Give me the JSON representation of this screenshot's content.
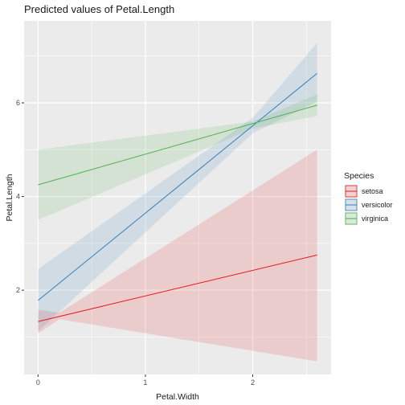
{
  "chart_data": {
    "type": "line",
    "title": "Predicted values of Petal.Length",
    "xlabel": "Petal.Width",
    "ylabel": "Petal.Length",
    "xlim": [
      -0.13,
      2.73
    ],
    "ylim": [
      0.2,
      7.75
    ],
    "x_ticks": [
      0,
      1,
      2
    ],
    "y_ticks": [
      2,
      4,
      6
    ],
    "grid": true,
    "legend_title": "Species",
    "legend_position": "right",
    "series": [
      {
        "name": "setosa",
        "color": "#e41a1c",
        "x": [
          0,
          2.6
        ],
        "values": [
          1.33,
          2.75
        ],
        "ci_x": [
          0,
          0.2,
          2.6
        ],
        "ci_lower": [
          1.08,
          1.38,
          0.48
        ],
        "ci_upper": [
          1.58,
          1.52,
          5.0
        ]
      },
      {
        "name": "versicolor",
        "color": "#377eb8",
        "x": [
          0,
          2.6
        ],
        "values": [
          1.78,
          6.63
        ],
        "ci_x": [
          0,
          2.0,
          2.6
        ],
        "ci_lower": [
          1.12,
          5.35,
          6.03
        ],
        "ci_upper": [
          2.45,
          5.68,
          7.28
        ]
      },
      {
        "name": "virginica",
        "color": "#4daf4a",
        "x": [
          0,
          2.6
        ],
        "values": [
          4.25,
          5.95
        ],
        "ci_x": [
          0,
          2.0,
          2.6
        ],
        "ci_lower": [
          3.5,
          5.45,
          5.72
        ],
        "ci_upper": [
          5.0,
          5.6,
          6.18
        ]
      }
    ]
  }
}
